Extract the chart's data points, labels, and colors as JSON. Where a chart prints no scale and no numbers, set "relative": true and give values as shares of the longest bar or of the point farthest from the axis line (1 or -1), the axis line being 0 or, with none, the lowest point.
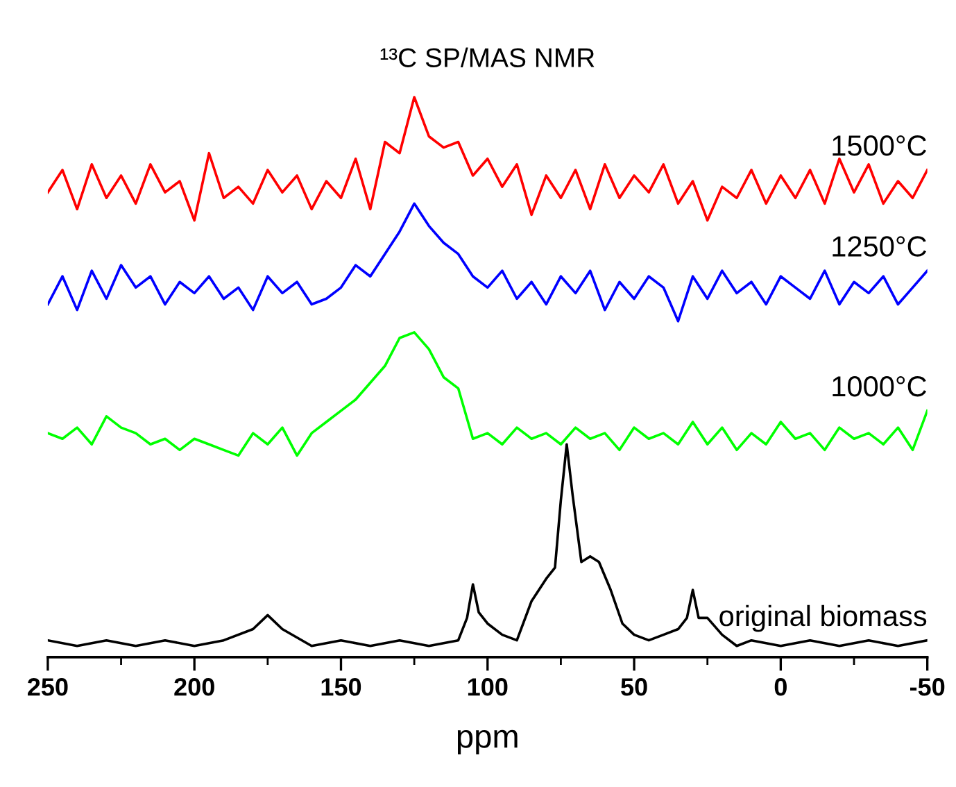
{
  "chart_data": {
    "type": "line",
    "title": "¹³C SP/MAS NMR",
    "xlabel": "ppm",
    "relative": true,
    "legend": false,
    "grid": false,
    "xlim": [
      250,
      -50
    ],
    "xticks": [
      250,
      200,
      150,
      100,
      50,
      0,
      -50
    ],
    "x": [
      250,
      245,
      240,
      235,
      230,
      225,
      220,
      215,
      210,
      205,
      200,
      195,
      190,
      185,
      180,
      175,
      170,
      165,
      160,
      155,
      150,
      145,
      140,
      135,
      130,
      125,
      120,
      115,
      110,
      105,
      100,
      95,
      90,
      85,
      80,
      75,
      70,
      65,
      60,
      55,
      50,
      45,
      40,
      35,
      30,
      25,
      20,
      15,
      10,
      5,
      0,
      -5,
      -10,
      -15,
      -20,
      -25,
      -30,
      -35,
      -40,
      -45,
      -50
    ],
    "series": [
      {
        "name": "1500°C",
        "color": "#ff0000",
        "values": [
          0.83,
          0.87,
          0.8,
          0.88,
          0.82,
          0.86,
          0.81,
          0.88,
          0.83,
          0.85,
          0.78,
          0.9,
          0.82,
          0.84,
          0.81,
          0.87,
          0.83,
          0.86,
          0.8,
          0.85,
          0.82,
          0.89,
          0.8,
          0.92,
          0.9,
          1.0,
          0.93,
          0.91,
          0.92,
          0.86,
          0.89,
          0.84,
          0.88,
          0.79,
          0.86,
          0.82,
          0.87,
          0.8,
          0.88,
          0.82,
          0.86,
          0.83,
          0.88,
          0.81,
          0.85,
          0.78,
          0.84,
          0.82,
          0.87,
          0.81,
          0.86,
          0.82,
          0.87,
          0.81,
          0.89,
          0.83,
          0.88,
          0.81,
          0.85,
          0.82,
          0.87
        ]
      },
      {
        "name": "1250°C",
        "color": "#0000ff",
        "values": [
          0.63,
          0.68,
          0.62,
          0.69,
          0.64,
          0.7,
          0.66,
          0.68,
          0.63,
          0.67,
          0.65,
          0.68,
          0.64,
          0.66,
          0.62,
          0.68,
          0.65,
          0.67,
          0.63,
          0.64,
          0.66,
          0.7,
          0.68,
          0.72,
          0.76,
          0.81,
          0.77,
          0.74,
          0.72,
          0.68,
          0.66,
          0.69,
          0.64,
          0.67,
          0.63,
          0.68,
          0.65,
          0.69,
          0.62,
          0.67,
          0.64,
          0.68,
          0.66,
          0.6,
          0.68,
          0.64,
          0.69,
          0.65,
          0.67,
          0.63,
          0.68,
          0.66,
          0.64,
          0.69,
          0.63,
          0.67,
          0.65,
          0.68,
          0.63,
          0.66,
          0.69
        ]
      },
      {
        "name": "1000°C",
        "color": "#00ff00",
        "values": [
          0.4,
          0.39,
          0.41,
          0.38,
          0.43,
          0.41,
          0.4,
          0.38,
          0.39,
          0.37,
          0.39,
          0.38,
          0.37,
          0.36,
          0.4,
          0.38,
          0.41,
          0.36,
          0.4,
          0.42,
          0.44,
          0.46,
          0.49,
          0.52,
          0.57,
          0.58,
          0.55,
          0.5,
          0.48,
          0.39,
          0.4,
          0.38,
          0.41,
          0.39,
          0.4,
          0.38,
          0.41,
          0.39,
          0.4,
          0.37,
          0.41,
          0.39,
          0.4,
          0.38,
          0.42,
          0.38,
          0.41,
          0.37,
          0.4,
          0.38,
          0.42,
          0.39,
          0.4,
          0.37,
          0.41,
          0.39,
          0.4,
          0.38,
          0.41,
          0.37,
          0.44
        ]
      },
      {
        "name": "original biomass",
        "color": "#000000",
        "x": [
          250,
          240,
          230,
          220,
          210,
          200,
          190,
          180,
          175,
          170,
          160,
          150,
          140,
          130,
          120,
          110,
          107,
          105,
          103,
          100,
          95,
          90,
          85,
          80,
          77,
          75,
          73,
          71,
          68,
          65,
          62,
          58,
          54,
          50,
          45,
          40,
          35,
          32,
          30,
          28,
          25,
          20,
          15,
          10,
          0,
          -10,
          -20,
          -30,
          -40,
          -50
        ],
        "values": [
          0.03,
          0.02,
          0.03,
          0.02,
          0.03,
          0.02,
          0.03,
          0.05,
          0.075,
          0.05,
          0.02,
          0.03,
          0.02,
          0.03,
          0.02,
          0.03,
          0.07,
          0.13,
          0.08,
          0.06,
          0.04,
          0.03,
          0.1,
          0.14,
          0.16,
          0.28,
          0.38,
          0.29,
          0.17,
          0.18,
          0.17,
          0.12,
          0.06,
          0.04,
          0.03,
          0.04,
          0.05,
          0.07,
          0.12,
          0.07,
          0.07,
          0.04,
          0.02,
          0.03,
          0.02,
          0.03,
          0.02,
          0.03,
          0.02,
          0.03
        ]
      }
    ]
  }
}
